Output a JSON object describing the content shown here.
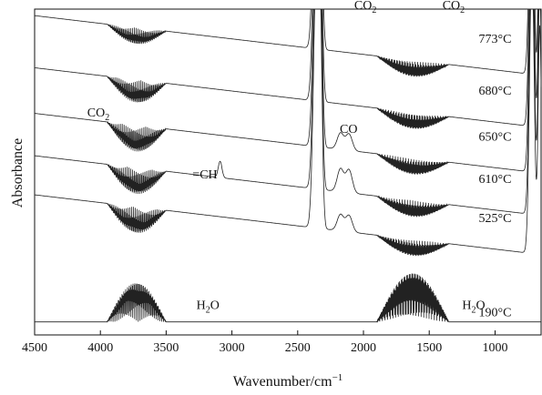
{
  "chart_data": {
    "type": "line",
    "title": "",
    "xlabel": "Wavenumber/cm",
    "xlabel_sup": "−1",
    "ylabel": "Absorbance",
    "xlim": [
      4500,
      650
    ],
    "x_reversed": true,
    "xticks": [
      4500,
      4000,
      3500,
      3000,
      2500,
      2000,
      1500,
      1000
    ],
    "grid": false,
    "series": [
      {
        "name": "773°C",
        "baseline": 0.88,
        "rise": 0.1,
        "co2_asym": 0.07,
        "co2_bend": 0.1,
        "h2o_hi": 0.05,
        "h2o_lo": 0.05,
        "ch": 0,
        "co": 0
      },
      {
        "name": "680°C",
        "baseline": 0.72,
        "rise": 0.1,
        "co2_asym": 0.07,
        "co2_bend": 0.1,
        "h2o_hi": 0.07,
        "h2o_lo": 0.05,
        "ch": 0,
        "co": 0
      },
      {
        "name": "650°C",
        "baseline": 0.58,
        "rise": 0.1,
        "co2_asym": 0.07,
        "co2_bend": 0.1,
        "h2o_hi": 0.08,
        "h2o_lo": 0.05,
        "ch": 0,
        "co": 0.05
      },
      {
        "name": "610°C",
        "baseline": 0.45,
        "rise": 0.1,
        "co2_asym": 0.07,
        "co2_bend": 0.1,
        "h2o_hi": 0.08,
        "h2o_lo": 0.05,
        "ch": 0.05,
        "co": 0.07
      },
      {
        "name": "525°C",
        "baseline": 0.33,
        "rise": 0.1,
        "co2_asym": 0.07,
        "co2_bend": 0.1,
        "h2o_hi": 0.08,
        "h2o_lo": 0.05,
        "ch": 0,
        "co": 0.05
      },
      {
        "name": "190°C",
        "baseline": 0.04,
        "rise": 0.0,
        "co2_asym": 0.0,
        "co2_bend": 0.0,
        "h2o_hi": 0.12,
        "h2o_lo": 0.15,
        "ch": 0,
        "co": 0
      }
    ],
    "annotations": [
      {
        "text": "CO",
        "sub": "2",
        "x": 2070,
        "y": 1.0
      },
      {
        "text": "CO",
        "sub": "2",
        "x": 1400,
        "y": 1.0
      },
      {
        "text": "CO",
        "sub": "2",
        "x": 4100,
        "y": 0.67
      },
      {
        "text": "=CH",
        "x": 3300,
        "y": 0.48
      },
      {
        "text": "CO",
        "sub": "",
        "x": 2180,
        "y": 0.62
      },
      {
        "text": "H",
        "sub": "2",
        "tail": "O",
        "x": 3270,
        "y": 0.08
      },
      {
        "text": "H",
        "sub": "2",
        "tail": "O",
        "x": 1250,
        "y": 0.08
      }
    ]
  }
}
